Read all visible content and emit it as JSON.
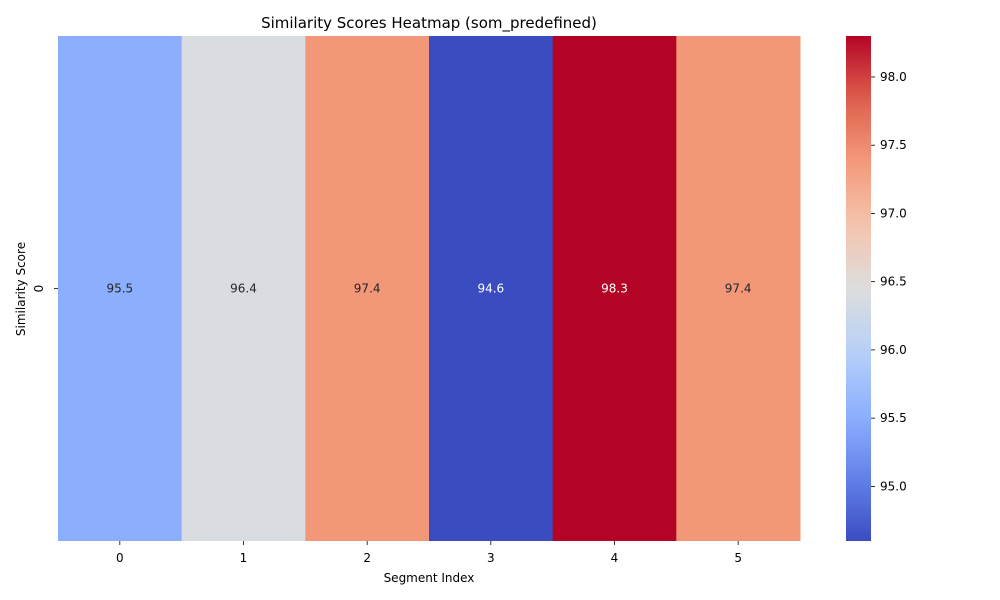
{
  "chart_data": {
    "type": "heatmap",
    "title": "Similarity Scores Heatmap (som_predefined)",
    "xlabel": "Segment Index",
    "ylabel": "Similarity Score",
    "x_categories": [
      "0",
      "1",
      "2",
      "3",
      "4",
      "5"
    ],
    "y_categories": [
      "0"
    ],
    "values": [
      [
        95.5,
        96.4,
        97.4,
        94.6,
        98.3,
        97.4
      ]
    ],
    "cell_labels": [
      "95.5",
      "96.4",
      "97.4",
      "94.6",
      "98.3",
      "97.4"
    ],
    "colormap": "coolwarm",
    "colorbar": {
      "min": 94.6,
      "max": 98.3,
      "ticks": [
        95.0,
        95.5,
        96.0,
        96.5,
        97.0,
        97.5,
        98.0
      ],
      "tick_labels": [
        "95.0",
        "95.5",
        "96.0",
        "96.5",
        "97.0",
        "97.5",
        "98.0"
      ]
    }
  }
}
